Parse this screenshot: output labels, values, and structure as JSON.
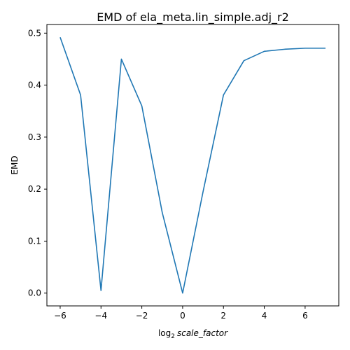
{
  "chart_data": {
    "type": "line",
    "title": "EMD of ela_meta.lin_simple.adj_r2",
    "xlabel_base": "log",
    "xlabel_subscript": "2",
    "xlabel_var": "scale_factor",
    "ylabel": "EMD",
    "xlim": [
      -6.65,
      7.65
    ],
    "ylim": [
      -0.0246,
      0.5166
    ],
    "x_ticks": [
      -6,
      -4,
      -2,
      0,
      2,
      4,
      6
    ],
    "x_tick_labels": [
      "−6",
      "−4",
      "−2",
      "0",
      "2",
      "4",
      "6"
    ],
    "y_ticks": [
      0.0,
      0.1,
      0.2,
      0.3,
      0.4,
      0.5
    ],
    "y_tick_labels": [
      "0.0",
      "0.1",
      "0.2",
      "0.3",
      "0.4",
      "0.5"
    ],
    "grid": false,
    "series": [
      {
        "color": "#1f77b4",
        "x": [
          -6,
          -5,
          -4,
          -3,
          -2,
          -1,
          0,
          1,
          2,
          3,
          4,
          5,
          6,
          7
        ],
        "y": [
          0.492,
          0.381,
          0.005,
          0.45,
          0.36,
          0.155,
          0.0,
          0.195,
          0.381,
          0.447,
          0.465,
          0.469,
          0.471,
          0.471
        ]
      }
    ]
  }
}
